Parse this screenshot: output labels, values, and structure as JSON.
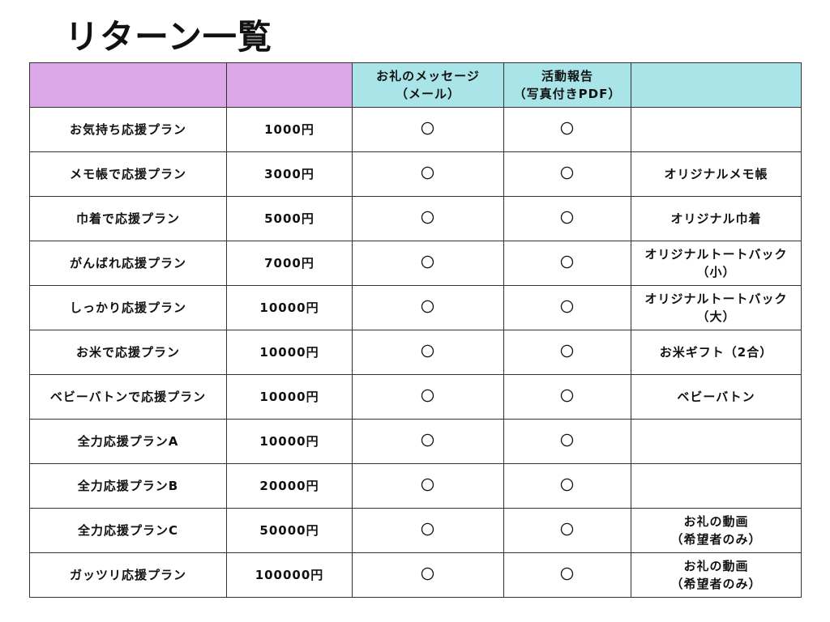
{
  "title": "リターン一覧",
  "colors": {
    "header_plan": "#dca8e8",
    "header_return": "#a9e5e8"
  },
  "headers": [
    "",
    "",
    "お礼のメッセージ\n（メール）",
    "活動報告\n（写真付きPDF）",
    ""
  ],
  "rows": [
    {
      "plan": "お気持ち応援プラン",
      "price": "1000円",
      "message": "〇",
      "report": "〇",
      "gift": ""
    },
    {
      "plan": "メモ帳で応援プラン",
      "price": "3000円",
      "message": "〇",
      "report": "〇",
      "gift": "オリジナルメモ帳"
    },
    {
      "plan": "巾着で応援プラン",
      "price": "5000円",
      "message": "〇",
      "report": "〇",
      "gift": "オリジナル巾着"
    },
    {
      "plan": "がんばれ応援プラン",
      "price": "7000円",
      "message": "〇",
      "report": "〇",
      "gift": "オリジナルトートバック\n（小）"
    },
    {
      "plan": "しっかり応援プラン",
      "price": "10000円",
      "message": "〇",
      "report": "〇",
      "gift": "オリジナルトートバック\n（大）"
    },
    {
      "plan": "お米で応援プラン",
      "price": "10000円",
      "message": "〇",
      "report": "〇",
      "gift": "お米ギフト（2合）"
    },
    {
      "plan": "ベビーバトンで応援プラン",
      "price": "10000円",
      "message": "〇",
      "report": "〇",
      "gift": "ベビーバトン"
    },
    {
      "plan": "全力応援プランA",
      "price": "10000円",
      "message": "〇",
      "report": "〇",
      "gift": ""
    },
    {
      "plan": "全力応援プランB",
      "price": "20000円",
      "message": "〇",
      "report": "〇",
      "gift": ""
    },
    {
      "plan": "全力応援プランC",
      "price": "50000円",
      "message": "〇",
      "report": "〇",
      "gift": "お礼の動画\n（希望者のみ）"
    },
    {
      "plan": "ガッツリ応援プラン",
      "price": "100000円",
      "message": "〇",
      "report": "〇",
      "gift": "お礼の動画\n（希望者のみ）"
    }
  ]
}
